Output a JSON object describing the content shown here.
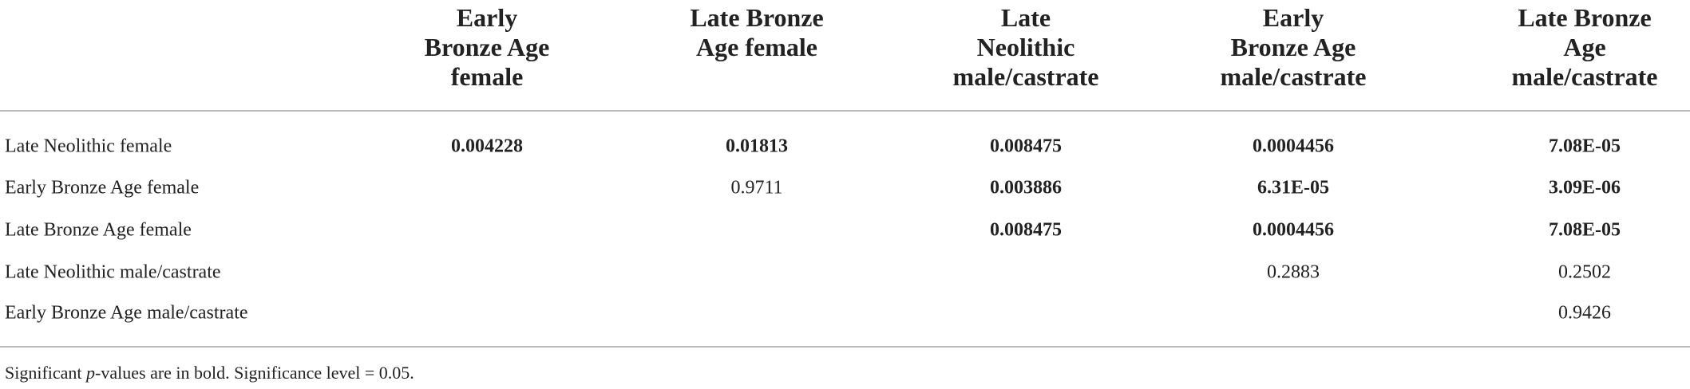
{
  "table": {
    "columns": [
      [],
      [
        "Early",
        "Bronze Age",
        "female"
      ],
      [
        "Late Bronze",
        "Age female"
      ],
      [
        "Late",
        "Neolithic",
        "male/castrate"
      ],
      [
        "Early",
        "Bronze Age",
        "male/castrate"
      ],
      [
        "Late Bronze",
        "Age",
        "male/castrate"
      ]
    ],
    "rows": [
      {
        "label": "Late Neolithic female",
        "cells": [
          {
            "text": "0.004228",
            "bold": true
          },
          {
            "text": "0.01813",
            "bold": true
          },
          {
            "text": "0.008475",
            "bold": true
          },
          {
            "text": "0.0004456",
            "bold": true
          },
          {
            "text": "7.08E-05",
            "bold": true
          }
        ]
      },
      {
        "label": "Early Bronze Age female",
        "cells": [
          null,
          {
            "text": "0.9711",
            "bold": false
          },
          {
            "text": "0.003886",
            "bold": true
          },
          {
            "text": "6.31E-05",
            "bold": true
          },
          {
            "text": "3.09E-06",
            "bold": true
          }
        ]
      },
      {
        "label": "Late Bronze Age female",
        "cells": [
          null,
          null,
          {
            "text": "0.008475",
            "bold": true
          },
          {
            "text": "0.0004456",
            "bold": true
          },
          {
            "text": "7.08E-05",
            "bold": true
          }
        ]
      },
      {
        "label": "Late Neolithic male/castrate",
        "cells": [
          null,
          null,
          null,
          {
            "text": "0.2883",
            "bold": false
          },
          {
            "text": "0.2502",
            "bold": false
          }
        ]
      },
      {
        "label": "Early Bronze Age male/castrate",
        "cells": [
          null,
          null,
          null,
          null,
          {
            "text": "0.9426",
            "bold": false
          }
        ]
      }
    ],
    "note": {
      "before": "Significant ",
      "italic": "p",
      "after": "-values are in bold. Significance level = 0.05."
    }
  }
}
